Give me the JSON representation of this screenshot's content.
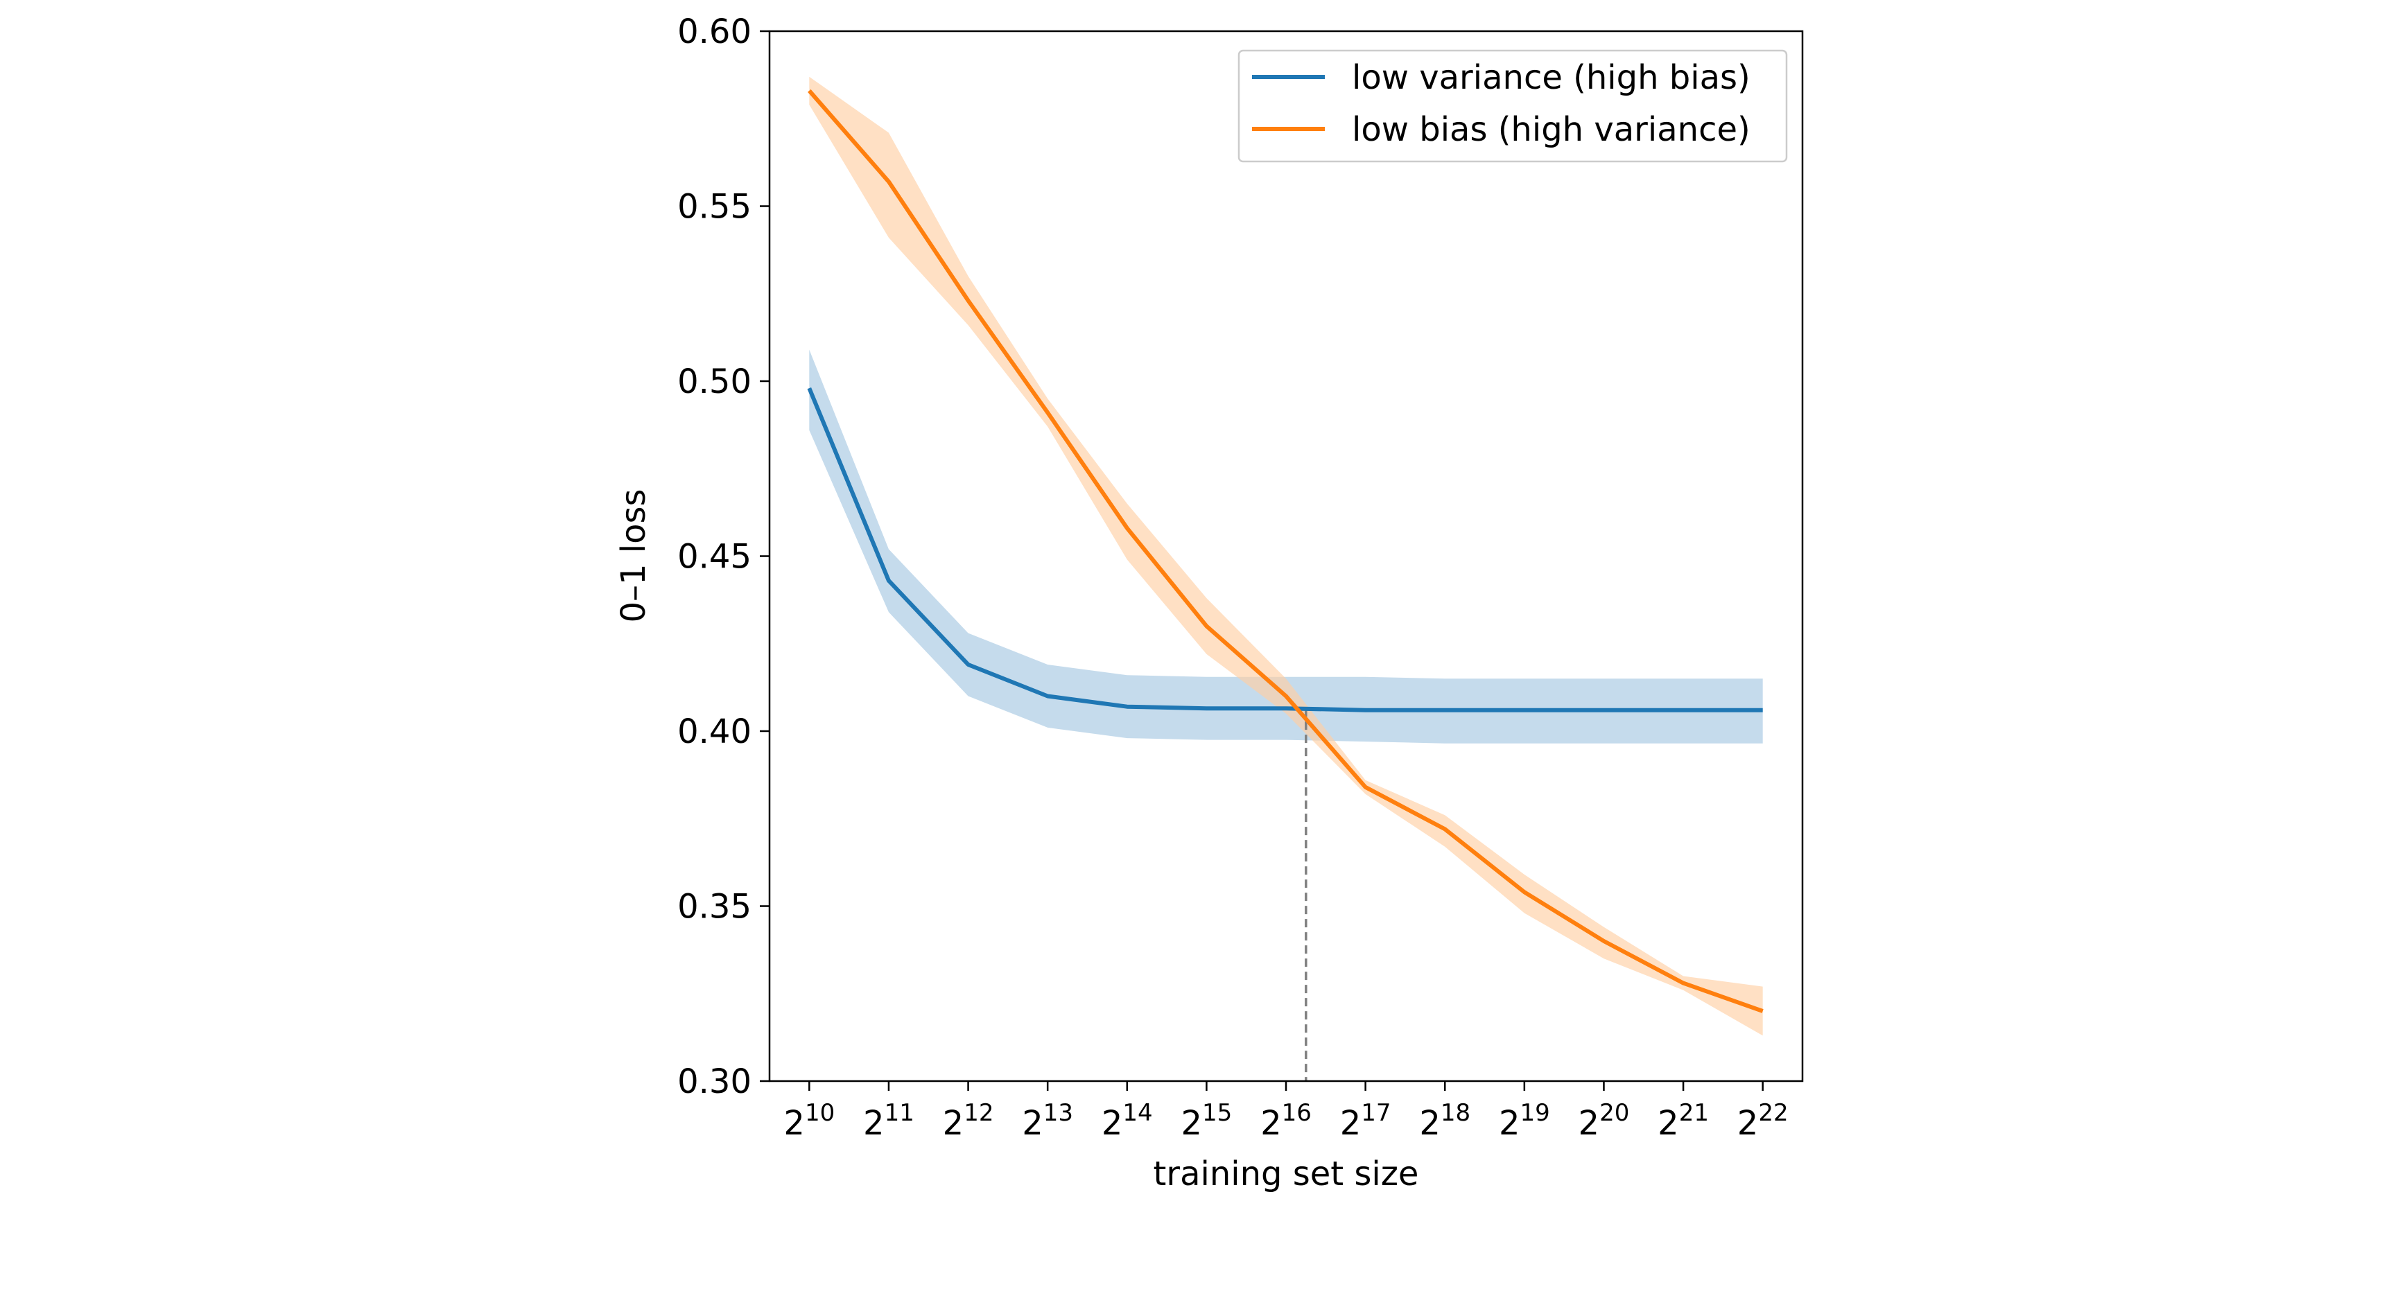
{
  "chart_data": {
    "type": "line",
    "xlabel": "training set size",
    "ylabel": "0–1 loss",
    "x_scale": "log2",
    "x_ticks": [
      {
        "base": "2",
        "exp": "10"
      },
      {
        "base": "2",
        "exp": "11"
      },
      {
        "base": "2",
        "exp": "12"
      },
      {
        "base": "2",
        "exp": "13"
      },
      {
        "base": "2",
        "exp": "14"
      },
      {
        "base": "2",
        "exp": "15"
      },
      {
        "base": "2",
        "exp": "16"
      },
      {
        "base": "2",
        "exp": "17"
      },
      {
        "base": "2",
        "exp": "18"
      },
      {
        "base": "2",
        "exp": "19"
      },
      {
        "base": "2",
        "exp": "20"
      },
      {
        "base": "2",
        "exp": "21"
      },
      {
        "base": "2",
        "exp": "22"
      }
    ],
    "x_values": [
      1024,
      2048,
      4096,
      8192,
      16384,
      32768,
      65536,
      131072,
      262144,
      524288,
      1048576,
      2097152,
      4194304
    ],
    "xlim": [
      724,
      5931642
    ],
    "ylim": [
      0.3,
      0.6
    ],
    "y_ticks": [
      "0.30",
      "0.35",
      "0.40",
      "0.45",
      "0.50",
      "0.55",
      "0.60"
    ],
    "grid": false,
    "legend_position": "top-right",
    "series": [
      {
        "name": "low variance (high bias)",
        "color": "#1f77b4",
        "band_color": "#a6c8e2",
        "values": [
          0.498,
          0.443,
          0.419,
          0.41,
          0.407,
          0.4065,
          0.4065,
          0.406,
          0.406,
          0.406,
          0.406,
          0.406,
          0.406
        ],
        "upper": [
          0.509,
          0.452,
          0.428,
          0.419,
          0.416,
          0.4155,
          0.4155,
          0.4155,
          0.415,
          0.415,
          0.415,
          0.415,
          0.415
        ],
        "lower": [
          0.486,
          0.434,
          0.41,
          0.401,
          0.398,
          0.3975,
          0.3975,
          0.397,
          0.3965,
          0.3965,
          0.3965,
          0.3965,
          0.3965
        ]
      },
      {
        "name": "low bias (high variance)",
        "color": "#ff7f0e",
        "band_color": "#ffcfa5",
        "values": [
          0.583,
          0.557,
          0.523,
          0.491,
          0.458,
          0.43,
          0.41,
          0.384,
          0.372,
          0.354,
          0.34,
          0.328,
          0.32
        ],
        "upper": [
          0.587,
          0.571,
          0.53,
          0.495,
          0.465,
          0.438,
          0.415,
          0.386,
          0.376,
          0.359,
          0.344,
          0.33,
          0.327
        ],
        "lower": [
          0.579,
          0.541,
          0.516,
          0.487,
          0.449,
          0.422,
          0.405,
          0.382,
          0.367,
          0.348,
          0.335,
          0.326,
          0.313
        ]
      }
    ],
    "crossover_x": 78000,
    "crossover_color": "#808080"
  }
}
